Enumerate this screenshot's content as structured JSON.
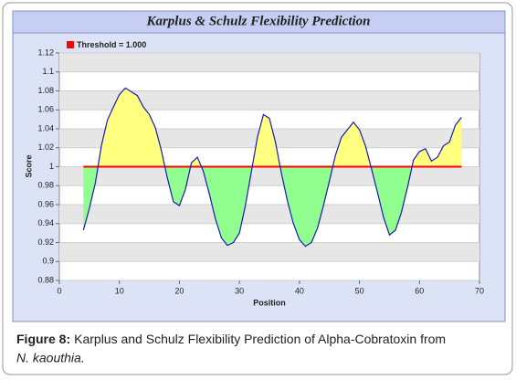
{
  "chart_data": {
    "type": "line",
    "title": "Karplus & Schulz Flexibility Prediction",
    "x_label": "Position",
    "y_label": "Score",
    "threshold": {
      "label": "Threshold = 1.000",
      "value": 1,
      "color": "#ff0000"
    },
    "above_color": "#ffff80",
    "below_color": "#90ff90",
    "series": [
      {
        "color": "#1a1ab8",
        "x": [
          4,
          5,
          6,
          7,
          8,
          9,
          10,
          11,
          12,
          13,
          14,
          15,
          16,
          17,
          18,
          19,
          20,
          21,
          22,
          23,
          24,
          25,
          26,
          27,
          28,
          29,
          30,
          31,
          32,
          33,
          34,
          35,
          36,
          37,
          38,
          39,
          40,
          41,
          42,
          43,
          44,
          45,
          46,
          47,
          48,
          49,
          50,
          51,
          52,
          53,
          54,
          55,
          56,
          57,
          58,
          59,
          60,
          61,
          62,
          63,
          64,
          65,
          66,
          67
        ],
        "values": [
          0.933,
          0.956,
          0.983,
          1.022,
          1.049,
          1.063,
          1.076,
          1.083,
          1.079,
          1.075,
          1.063,
          1.055,
          1.041,
          1.017,
          0.988,
          0.963,
          0.959,
          0.976,
          1.004,
          1.01,
          0.995,
          0.971,
          0.945,
          0.925,
          0.917,
          0.92,
          0.93,
          0.959,
          0.995,
          1.031,
          1.055,
          1.051,
          1.026,
          0.993,
          0.964,
          0.94,
          0.923,
          0.916,
          0.92,
          0.935,
          0.959,
          0.985,
          1.012,
          1.031,
          1.039,
          1.047,
          1.039,
          1.022,
          0.998,
          0.973,
          0.947,
          0.928,
          0.933,
          0.952,
          0.978,
          1.007,
          1.016,
          1.019,
          1.006,
          1.01,
          1.022,
          1.026,
          1.044,
          1.052
        ]
      }
    ],
    "xlim": [
      0,
      70
    ],
    "xticks": [
      0,
      10,
      20,
      30,
      40,
      50,
      60,
      70
    ],
    "ylim": [
      0.88,
      1.12
    ],
    "yticks": [
      0.88,
      0.9,
      0.92,
      0.94,
      0.96,
      0.98,
      1,
      1.02,
      1.04,
      1.06,
      1.08,
      1.1,
      1.12
    ],
    "grid": true,
    "stripes": true
  },
  "caption": {
    "label": "Figure 8:",
    "text": "Karplus and Schulz Flexibility Prediction of Alpha-Cobratoxin from",
    "species": "N. kaouthia."
  }
}
